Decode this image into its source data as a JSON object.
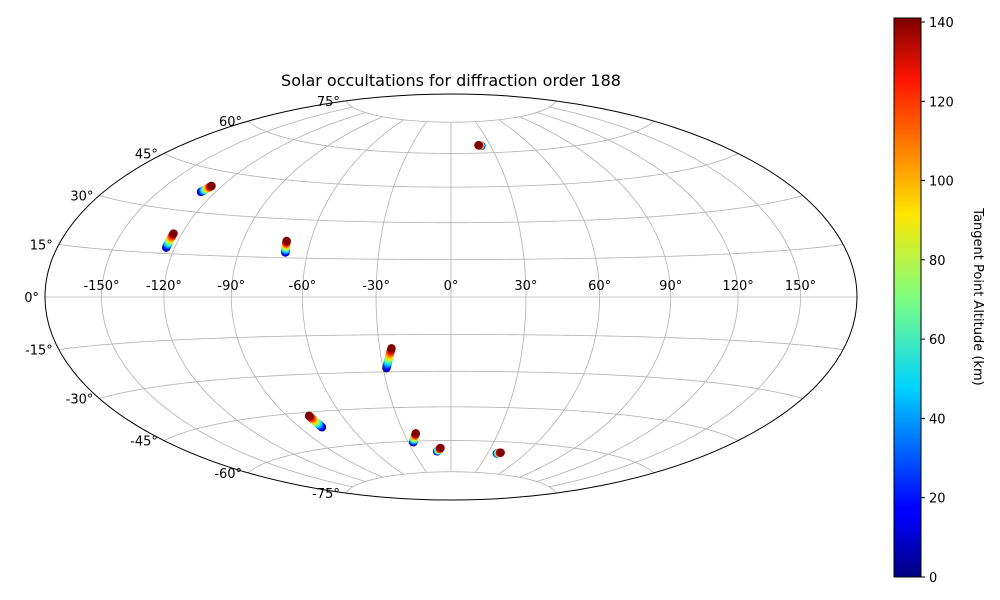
{
  "chart_data": {
    "type": "scatter",
    "projection": "hammer",
    "title": "Solar occultations for diffraction order 188",
    "grid": true,
    "lon_ticks": [
      -150,
      -120,
      -90,
      -60,
      -30,
      0,
      30,
      60,
      90,
      120,
      150
    ],
    "lon_tick_labels": [
      "-150°",
      "-120°",
      "-90°",
      "-60°",
      "-30°",
      "0°",
      "30°",
      "60°",
      "90°",
      "120°",
      "150°"
    ],
    "lat_ticks": [
      75,
      60,
      45,
      30,
      15,
      0,
      -15,
      -30,
      -45,
      -60,
      -75
    ],
    "lat_tick_labels": [
      "75°",
      "60°",
      "45°",
      "30°",
      "15°",
      "0°",
      "-15°",
      "-30°",
      "-45°",
      "-60°",
      "-75°"
    ],
    "colorbar": {
      "label": "Tangent Point Altitude (km)",
      "colormap": "jet",
      "range": [
        0,
        141
      ],
      "ticks": [
        0,
        20,
        40,
        60,
        80,
        100,
        120,
        140
      ],
      "tick_labels": [
        "0",
        "20",
        "40",
        "60",
        "80",
        "100",
        "120",
        "140"
      ],
      "placement": "right"
    },
    "occultations": [
      {
        "lon_start": 23,
        "lat_start": 63.3,
        "lon_end": 21,
        "lat_end": 63.6,
        "alt_min": 0,
        "alt_max": 141
      },
      {
        "lon_start": -127.5,
        "lat_start": 37,
        "lon_end": -125.5,
        "lat_end": 39.5,
        "alt_min": 0,
        "alt_max": 141
      },
      {
        "lon_start": -124,
        "lat_start": 17,
        "lon_end": -124,
        "lat_end": 22,
        "alt_min": 0,
        "alt_max": 141
      },
      {
        "lon_start": -69.5,
        "lat_start": 17,
        "lon_end": -70.5,
        "lat_end": 21.5,
        "alt_min": 0,
        "alt_max": 141
      },
      {
        "lon_start": -28.5,
        "lat_start": -28.5,
        "lon_end": -25,
        "lat_end": -20.5,
        "alt_min": 0,
        "alt_max": 141
      },
      {
        "lon_start": -77,
        "lat_start": -51.5,
        "lon_end": -78,
        "lat_end": -46.5,
        "alt_min": 0,
        "alt_max": 141
      },
      {
        "lon_start": -26.5,
        "lat_start": -60.5,
        "lon_end": -22.5,
        "lat_end": -56.5,
        "alt_min": 0,
        "alt_max": 141
      },
      {
        "lon_start": -11,
        "lat_start": -65,
        "lon_end": -8,
        "lat_end": -63.5,
        "alt_min": 0,
        "alt_max": 141
      },
      {
        "lon_start": 37.5,
        "lat_start": -65.5,
        "lon_end": 40,
        "lat_end": -65,
        "alt_min": 0,
        "alt_max": 141
      }
    ]
  }
}
